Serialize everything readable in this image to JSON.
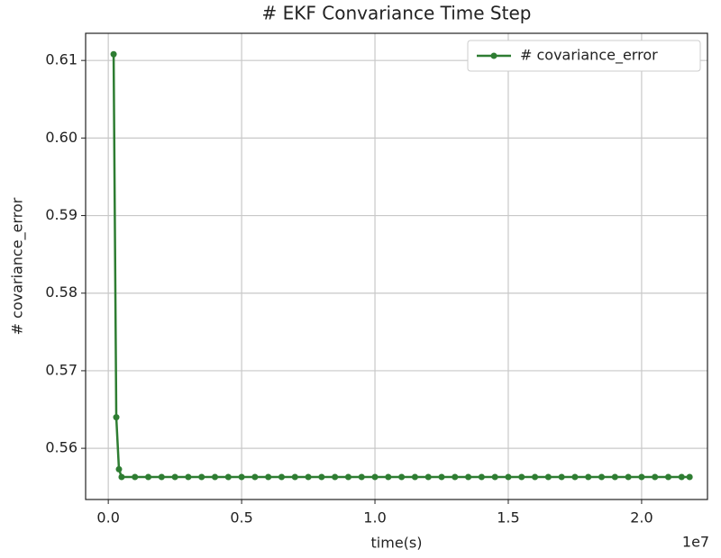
{
  "chart_data": {
    "type": "line",
    "title": "# EKF Convariance Time Step",
    "x_label": "time(s)",
    "y_label": "# covariance_error",
    "x_offset_label": "1e7",
    "x": [
      0.02,
      0.03,
      0.04,
      0.05,
      0.1,
      0.15,
      0.2,
      0.25,
      0.3,
      0.35,
      0.4,
      0.45,
      0.5,
      0.55,
      0.6,
      0.65,
      0.7,
      0.75,
      0.8,
      0.85,
      0.9,
      0.95,
      1,
      1.05,
      1.1,
      1.15,
      1.2,
      1.25,
      1.3,
      1.35,
      1.4,
      1.45,
      1.5,
      1.55,
      1.6,
      1.65,
      1.7,
      1.75,
      1.8,
      1.85,
      1.9,
      1.95,
      2,
      2.05,
      2.1,
      2.15,
      2.18
    ],
    "series": [
      {
        "name": "# covariance_error",
        "color": "#2e7d32",
        "values": [
          0.6108,
          0.564,
          0.5573,
          0.5563,
          0.5563,
          0.5563,
          0.5563,
          0.5563,
          0.5563,
          0.5563,
          0.5563,
          0.5563,
          0.5563,
          0.5563,
          0.5563,
          0.5563,
          0.5563,
          0.5563,
          0.5563,
          0.5563,
          0.5563,
          0.5563,
          0.5563,
          0.5563,
          0.5563,
          0.5563,
          0.5563,
          0.5563,
          0.5563,
          0.5563,
          0.5563,
          0.5563,
          0.5563,
          0.5563,
          0.5563,
          0.5563,
          0.5563,
          0.5563,
          0.5563,
          0.5563,
          0.5563,
          0.5563,
          0.5563,
          0.5563,
          0.5563,
          0.5563,
          0.5563
        ]
      }
    ],
    "xlim": [
      -0.085,
      2.247
    ],
    "xticks": [
      {
        "value": 0,
        "label": "0.0"
      },
      0.5,
      {
        "value": 1,
        "label": "1.0"
      },
      1.5,
      {
        "value": 2,
        "label": "2.0"
      }
    ],
    "ylim": [
      0.5534,
      0.6135
    ],
    "yticks": [
      0.56,
      0.57,
      0.58,
      0.59,
      {
        "value": 0.6,
        "label": "0.60"
      },
      0.61
    ],
    "grid": true,
    "legend": "upper right"
  }
}
